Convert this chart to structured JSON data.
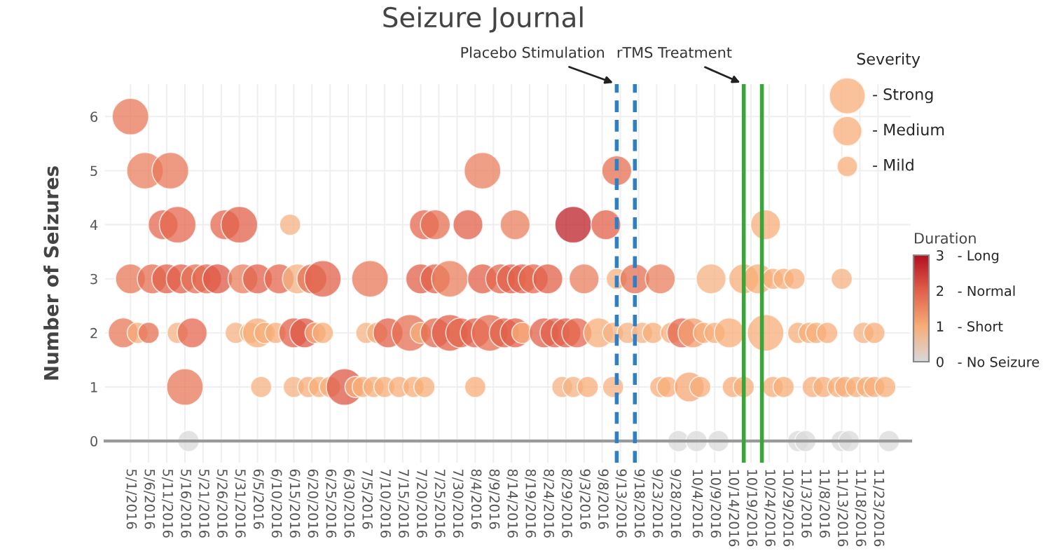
{
  "chart_data": {
    "type": "bubble",
    "title": "Seizure Journal",
    "ylabel": "Number of Seizures",
    "legend_title": "Severity",
    "clabel": "Duration",
    "xlim": [
      "2016-04-24",
      "2016-12-02"
    ],
    "ylim": [
      -0.4,
      6.6
    ],
    "yticks": [
      0,
      1,
      2,
      3,
      4,
      5,
      6
    ],
    "xticks": [
      {
        "value": "2016-05-01",
        "label": "5/1/2016"
      },
      {
        "value": "2016-05-06",
        "label": "5/6/2016"
      },
      {
        "value": "2016-05-11",
        "label": "5/11/2016"
      },
      {
        "value": "2016-05-16",
        "label": "5/16/2016"
      },
      {
        "value": "2016-05-21",
        "label": "5/21/2016"
      },
      {
        "value": "2016-05-26",
        "label": "5/26/2016"
      },
      {
        "value": "2016-05-31",
        "label": "5/31/2016"
      },
      {
        "value": "2016-06-05",
        "label": "6/5/2016"
      },
      {
        "value": "2016-06-10",
        "label": "6/10/2016"
      },
      {
        "value": "2016-06-15",
        "label": "6/15/2016"
      },
      {
        "value": "2016-06-20",
        "label": "6/20/2016"
      },
      {
        "value": "2016-06-25",
        "label": "6/25/2016"
      },
      {
        "value": "2016-06-30",
        "label": "6/30/2016"
      },
      {
        "value": "2016-07-05",
        "label": "7/5/2016"
      },
      {
        "value": "2016-07-10",
        "label": "7/10/2016"
      },
      {
        "value": "2016-07-15",
        "label": "7/15/2016"
      },
      {
        "value": "2016-07-20",
        "label": "7/20/2016"
      },
      {
        "value": "2016-07-25",
        "label": "7/25/2016"
      },
      {
        "value": "2016-07-30",
        "label": "7/30/2016"
      },
      {
        "value": "2016-08-04",
        "label": "8/4/2016"
      },
      {
        "value": "2016-08-09",
        "label": "8/9/2016"
      },
      {
        "value": "2016-08-14",
        "label": "8/14/2016"
      },
      {
        "value": "2016-08-19",
        "label": "8/19/2016"
      },
      {
        "value": "2016-08-24",
        "label": "8/24/2016"
      },
      {
        "value": "2016-08-29",
        "label": "8/29/2016"
      },
      {
        "value": "2016-09-03",
        "label": "9/3/2016"
      },
      {
        "value": "2016-09-08",
        "label": "9/8/2016"
      },
      {
        "value": "2016-09-13",
        "label": "9/13/2016"
      },
      {
        "value": "2016-09-18",
        "label": "9/18/2016"
      },
      {
        "value": "2016-09-23",
        "label": "9/23/2016"
      },
      {
        "value": "2016-09-28",
        "label": "9/28/2016"
      },
      {
        "value": "2016-10-04",
        "label": "10/4/2016"
      },
      {
        "value": "2016-10-09",
        "label": "10/9/2016"
      },
      {
        "value": "2016-10-14",
        "label": "10/14/2016"
      },
      {
        "value": "2016-10-19",
        "label": "10/19/2016"
      },
      {
        "value": "2016-10-24",
        "label": "10/24/2016"
      },
      {
        "value": "2016-10-29",
        "label": "10/29/2016"
      },
      {
        "value": "2016-11-03",
        "label": "11/3/2016"
      },
      {
        "value": "2016-11-08",
        "label": "11/8/2016"
      },
      {
        "value": "2016-11-13",
        "label": "11/13/2016"
      },
      {
        "value": "2016-11-18",
        "label": "11/18/2016"
      },
      {
        "value": "2016-11-23",
        "label": "11/23/2016"
      }
    ],
    "grid": true,
    "legend": "top right",
    "size_legend": [
      {
        "value": 3,
        "label": "- Strong"
      },
      {
        "value": 2,
        "label": "- Medium"
      },
      {
        "value": 1,
        "label": "- Mild"
      }
    ],
    "clim": [
      0,
      3
    ],
    "cticks": [
      {
        "value": 0,
        "label": "0   - No Seizure"
      },
      {
        "value": 1,
        "label": "1   - Short"
      },
      {
        "value": 2,
        "label": "2   - Normal"
      },
      {
        "value": 3,
        "label": "3   - Long"
      }
    ],
    "ref_lines": [
      {
        "axis": "x",
        "value": "2016-09-12",
        "label": "Placebo Stimulation",
        "color": "#2f7fc4",
        "line_style": "dashed"
      },
      {
        "axis": "x",
        "value": "2016-09-17",
        "color": "#2f7fc4",
        "line_style": "dashed"
      },
      {
        "axis": "x",
        "value": "2016-10-17",
        "label": "rTMS Treatment",
        "color": "#3aa63a",
        "line_style": "solid"
      },
      {
        "axis": "x",
        "value": "2016-10-22",
        "color": "#3aa63a",
        "line_style": "solid"
      }
    ],
    "series": [
      {
        "x": [
          "2016-05-01",
          "2016-05-05",
          "2016-05-12",
          "2016-08-06",
          "2016-09-12",
          "2016-05-10",
          "2016-05-14",
          "2016-05-27",
          "2016-05-31",
          "2016-06-14",
          "2016-07-21",
          "2016-07-24",
          "2016-08-02",
          "2016-08-15",
          "2016-08-31",
          "2016-09-09",
          "2016-10-23",
          "2016-05-01",
          "2016-05-07",
          "2016-05-11",
          "2016-05-15",
          "2016-05-19",
          "2016-05-22",
          "2016-05-25",
          "2016-06-01",
          "2016-06-05",
          "2016-06-11",
          "2016-06-16",
          "2016-06-20",
          "2016-06-23",
          "2016-07-06",
          "2016-07-20",
          "2016-07-24",
          "2016-07-28",
          "2016-08-06",
          "2016-08-11",
          "2016-08-14",
          "2016-08-17",
          "2016-08-20",
          "2016-08-24",
          "2016-09-03",
          "2016-09-12",
          "2016-09-17",
          "2016-09-24",
          "2016-10-08",
          "2016-10-17",
          "2016-10-21",
          "2016-10-25",
          "2016-10-28",
          "2016-10-31",
          "2016-11-13",
          "2016-04-29",
          "2016-05-03",
          "2016-05-06",
          "2016-05-14",
          "2016-05-18",
          "2016-05-30",
          "2016-06-03",
          "2016-06-05",
          "2016-06-07",
          "2016-06-10",
          "2016-06-15",
          "2016-06-18",
          "2016-06-21",
          "2016-06-23",
          "2016-07-05",
          "2016-07-08",
          "2016-07-11",
          "2016-07-17",
          "2016-07-20",
          "2016-07-24",
          "2016-07-28",
          "2016-07-31",
          "2016-08-04",
          "2016-08-08",
          "2016-08-12",
          "2016-08-15",
          "2016-08-17",
          "2016-08-23",
          "2016-08-26",
          "2016-08-29",
          "2016-09-01",
          "2016-09-07",
          "2016-09-11",
          "2016-09-15",
          "2016-09-19",
          "2016-09-22",
          "2016-09-27",
          "2016-09-30",
          "2016-10-03",
          "2016-10-06",
          "2016-10-09",
          "2016-10-13",
          "2016-10-23",
          "2016-11-01",
          "2016-11-04",
          "2016-11-06",
          "2016-11-09",
          "2016-11-19",
          "2016-11-22",
          "2016-05-16",
          "2016-06-06",
          "2016-06-15",
          "2016-06-19",
          "2016-06-22",
          "2016-06-25",
          "2016-06-29",
          "2016-07-02",
          "2016-07-04",
          "2016-07-07",
          "2016-07-10",
          "2016-07-14",
          "2016-07-18",
          "2016-07-21",
          "2016-08-04",
          "2016-08-28",
          "2016-08-31",
          "2016-09-04",
          "2016-09-11",
          "2016-09-24",
          "2016-09-26",
          "2016-10-02",
          "2016-10-05",
          "2016-10-14",
          "2016-10-17",
          "2016-10-25",
          "2016-10-28",
          "2016-11-05",
          "2016-11-08",
          "2016-11-12",
          "2016-11-14",
          "2016-11-17",
          "2016-11-20",
          "2016-11-22",
          "2016-11-25",
          "2016-05-17",
          "2016-09-29",
          "2016-10-04",
          "2016-10-10",
          "2016-11-01",
          "2016-11-03",
          "2016-11-13",
          "2016-11-15",
          "2016-11-26"
        ],
        "values": [
          6,
          5,
          5,
          5,
          5,
          4,
          4,
          4,
          4,
          4,
          4,
          4,
          4,
          4,
          4,
          4,
          4,
          3,
          3,
          3,
          3,
          3,
          3,
          3,
          3,
          3,
          3,
          3,
          3,
          3,
          3,
          3,
          3,
          3,
          3,
          3,
          3,
          3,
          3,
          3,
          3,
          3,
          3,
          3,
          3,
          3,
          3,
          3,
          3,
          3,
          3,
          2,
          2,
          2,
          2,
          2,
          2,
          2,
          2,
          2,
          2,
          2,
          2,
          2,
          2,
          2,
          2,
          2,
          2,
          2,
          2,
          2,
          2,
          2,
          2,
          2,
          2,
          2,
          2,
          2,
          2,
          2,
          2,
          2,
          2,
          2,
          2,
          2,
          2,
          2,
          2,
          2,
          2,
          2,
          2,
          2,
          2,
          2,
          2,
          2,
          1,
          1,
          1,
          1,
          1,
          1,
          1,
          1,
          1,
          1,
          1,
          1,
          1,
          1,
          1,
          1,
          1,
          1,
          1,
          1,
          1,
          1,
          1,
          1,
          1,
          1,
          1,
          1,
          1,
          1,
          1,
          1,
          1,
          1,
          1,
          0,
          0,
          0,
          0,
          0,
          0,
          0,
          0,
          0
        ],
        "sizes": [
          3,
          3,
          3,
          3,
          2,
          2,
          3,
          2,
          3,
          1,
          2,
          2,
          2,
          2,
          3,
          2,
          2,
          2,
          2,
          2,
          2,
          2,
          2,
          2,
          2,
          2,
          2,
          2,
          2,
          3,
          3,
          2,
          2,
          3,
          2,
          2,
          2,
          2,
          2,
          2,
          2,
          1,
          2,
          2,
          2,
          2,
          2,
          1,
          1,
          1,
          1,
          2,
          1,
          1,
          1,
          2,
          1,
          1,
          2,
          1,
          1,
          2,
          2,
          1,
          1,
          1,
          1,
          2,
          3,
          1,
          2,
          3,
          2,
          2,
          3,
          2,
          2,
          1,
          2,
          2,
          2,
          2,
          2,
          1,
          1,
          1,
          1,
          1,
          2,
          2,
          1,
          1,
          2,
          3,
          1,
          1,
          1,
          1,
          1,
          1,
          3,
          1,
          1,
          1,
          1,
          1,
          3,
          1,
          1,
          1,
          1,
          1,
          1,
          1,
          1,
          1,
          1,
          1,
          1,
          1,
          1,
          2,
          1,
          1,
          1,
          1,
          1,
          1,
          1,
          1,
          1,
          1,
          1,
          1,
          1,
          1,
          1,
          1,
          1,
          1,
          1,
          1,
          1,
          1
        ],
        "cvalues": [
          1.7,
          1.6,
          1.7,
          1.6,
          1.8,
          1.9,
          1.9,
          1.9,
          2.0,
          0.9,
          1.9,
          1.8,
          2.0,
          1.6,
          2.8,
          2.0,
          1.0,
          1.7,
          1.8,
          2.0,
          2.0,
          1.8,
          1.9,
          2.1,
          1.6,
          2.0,
          1.9,
          0.9,
          1.8,
          2.0,
          1.7,
          2.0,
          2.0,
          1.6,
          2.0,
          1.9,
          2.0,
          2.0,
          1.9,
          2.0,
          1.6,
          0.9,
          1.8,
          1.6,
          0.9,
          1.0,
          1.0,
          1.0,
          1.0,
          1.0,
          0.9,
          1.7,
          1.0,
          1.8,
          0.9,
          1.9,
          0.9,
          1.0,
          1.0,
          1.0,
          1.0,
          2.0,
          2.1,
          1.1,
          1.0,
          0.9,
          1.0,
          2.0,
          1.8,
          1.0,
          1.9,
          2.0,
          1.9,
          2.0,
          1.8,
          2.0,
          2.0,
          1.0,
          2.0,
          2.0,
          2.0,
          1.9,
          1.0,
          0.9,
          0.9,
          0.9,
          1.0,
          1.0,
          1.9,
          1.2,
          1.0,
          1.0,
          1.0,
          1.0,
          1.0,
          1.0,
          1.0,
          1.0,
          0.9,
          1.0,
          1.7,
          0.9,
          0.9,
          1.0,
          1.0,
          1.0,
          2.1,
          1.0,
          1.0,
          1.0,
          1.0,
          1.0,
          1.0,
          1.0,
          1.0,
          0.9,
          0.9,
          1.0,
          0.9,
          1.0,
          1.0,
          1.1,
          1.0,
          1.0,
          1.0,
          1.0,
          1.0,
          1.0,
          1.0,
          1.0,
          1.0,
          1.0,
          1.0,
          1.0,
          1.0,
          0,
          0,
          0,
          0,
          0,
          0,
          0,
          0,
          0
        ]
      }
    ]
  }
}
